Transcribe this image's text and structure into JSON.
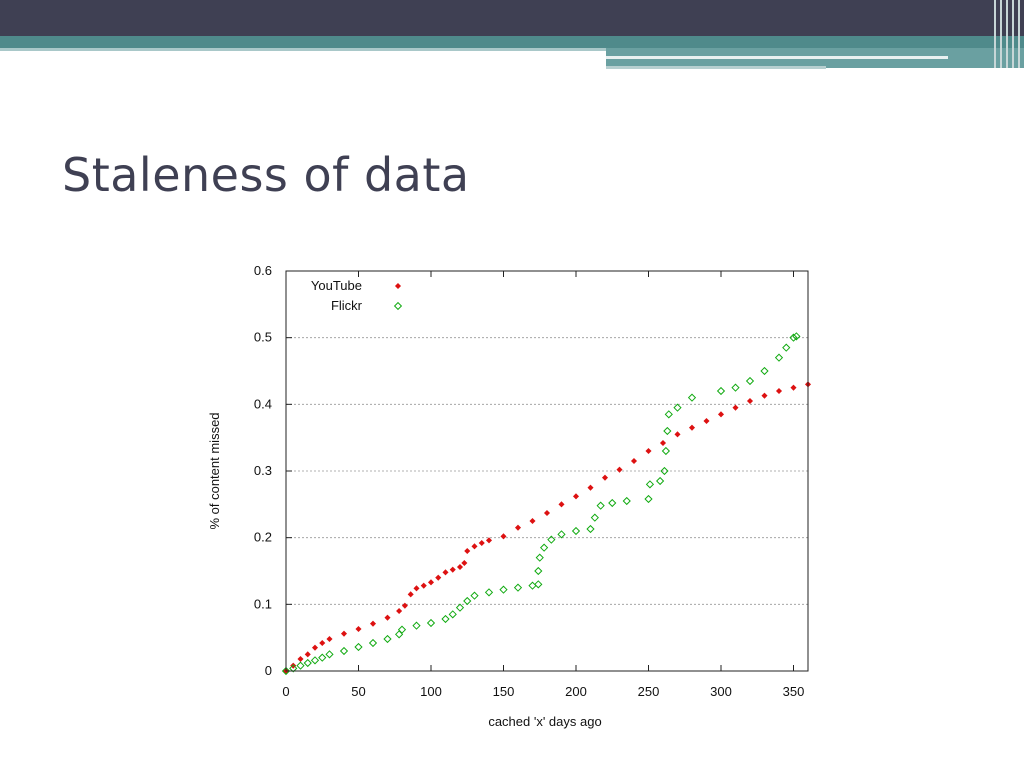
{
  "slide": {
    "title": "Staleness of data"
  },
  "colors": {
    "header_dark": "#3f4053",
    "header_teal": "#4f8a8b",
    "youtube": "#dd1111",
    "flickr": "#11aa11"
  },
  "chart_data": {
    "type": "scatter",
    "title": "",
    "xlabel": "cached 'x' days ago",
    "ylabel": "% of content missed",
    "xlim": [
      0,
      360
    ],
    "ylim": [
      0,
      0.6
    ],
    "xticks": [
      0,
      50,
      100,
      150,
      200,
      250,
      300,
      350
    ],
    "yticks": [
      0,
      0.1,
      0.2,
      0.3,
      0.4,
      0.5,
      0.6
    ],
    "grid": "horizontal dashed",
    "legend_position": "top-left",
    "series": [
      {
        "name": "YouTube",
        "marker": "filled-diamond",
        "color": "#dd1111",
        "points": [
          [
            0,
            0
          ],
          [
            5,
            0.008
          ],
          [
            10,
            0.018
          ],
          [
            15,
            0.025
          ],
          [
            20,
            0.035
          ],
          [
            25,
            0.042
          ],
          [
            30,
            0.048
          ],
          [
            40,
            0.056
          ],
          [
            50,
            0.063
          ],
          [
            60,
            0.071
          ],
          [
            70,
            0.08
          ],
          [
            78,
            0.09
          ],
          [
            82,
            0.098
          ],
          [
            86,
            0.115
          ],
          [
            90,
            0.124
          ],
          [
            95,
            0.128
          ],
          [
            100,
            0.133
          ],
          [
            105,
            0.14
          ],
          [
            110,
            0.148
          ],
          [
            115,
            0.152
          ],
          [
            120,
            0.156
          ],
          [
            123,
            0.162
          ],
          [
            125,
            0.18
          ],
          [
            130,
            0.187
          ],
          [
            135,
            0.192
          ],
          [
            140,
            0.196
          ],
          [
            150,
            0.202
          ],
          [
            160,
            0.215
          ],
          [
            170,
            0.225
          ],
          [
            180,
            0.237
          ],
          [
            190,
            0.25
          ],
          [
            200,
            0.262
          ],
          [
            210,
            0.275
          ],
          [
            220,
            0.29
          ],
          [
            230,
            0.302
          ],
          [
            240,
            0.315
          ],
          [
            250,
            0.33
          ],
          [
            260,
            0.342
          ],
          [
            270,
            0.355
          ],
          [
            280,
            0.365
          ],
          [
            290,
            0.375
          ],
          [
            300,
            0.385
          ],
          [
            310,
            0.395
          ],
          [
            320,
            0.405
          ],
          [
            330,
            0.413
          ],
          [
            340,
            0.42
          ],
          [
            350,
            0.425
          ],
          [
            360,
            0.43
          ]
        ]
      },
      {
        "name": "Flickr",
        "marker": "open-diamond",
        "color": "#11aa11",
        "points": [
          [
            0,
            0
          ],
          [
            5,
            0.004
          ],
          [
            10,
            0.008
          ],
          [
            15,
            0.012
          ],
          [
            20,
            0.016
          ],
          [
            25,
            0.02
          ],
          [
            30,
            0.025
          ],
          [
            40,
            0.03
          ],
          [
            50,
            0.036
          ],
          [
            60,
            0.042
          ],
          [
            70,
            0.048
          ],
          [
            78,
            0.055
          ],
          [
            80,
            0.062
          ],
          [
            90,
            0.068
          ],
          [
            100,
            0.072
          ],
          [
            110,
            0.078
          ],
          [
            115,
            0.085
          ],
          [
            120,
            0.095
          ],
          [
            125,
            0.105
          ],
          [
            130,
            0.113
          ],
          [
            140,
            0.118
          ],
          [
            150,
            0.122
          ],
          [
            160,
            0.125
          ],
          [
            170,
            0.128
          ],
          [
            174,
            0.13
          ],
          [
            174,
            0.15
          ],
          [
            175,
            0.17
          ],
          [
            178,
            0.185
          ],
          [
            183,
            0.197
          ],
          [
            190,
            0.205
          ],
          [
            200,
            0.21
          ],
          [
            210,
            0.213
          ],
          [
            213,
            0.23
          ],
          [
            217,
            0.248
          ],
          [
            225,
            0.252
          ],
          [
            235,
            0.255
          ],
          [
            250,
            0.258
          ],
          [
            251,
            0.28
          ],
          [
            258,
            0.285
          ],
          [
            261,
            0.3
          ],
          [
            262,
            0.33
          ],
          [
            263,
            0.36
          ],
          [
            264,
            0.385
          ],
          [
            270,
            0.395
          ],
          [
            280,
            0.41
          ],
          [
            300,
            0.42
          ],
          [
            310,
            0.425
          ],
          [
            320,
            0.435
          ],
          [
            330,
            0.45
          ],
          [
            340,
            0.47
          ],
          [
            345,
            0.485
          ],
          [
            350,
            0.5
          ],
          [
            352,
            0.502
          ]
        ]
      }
    ]
  }
}
